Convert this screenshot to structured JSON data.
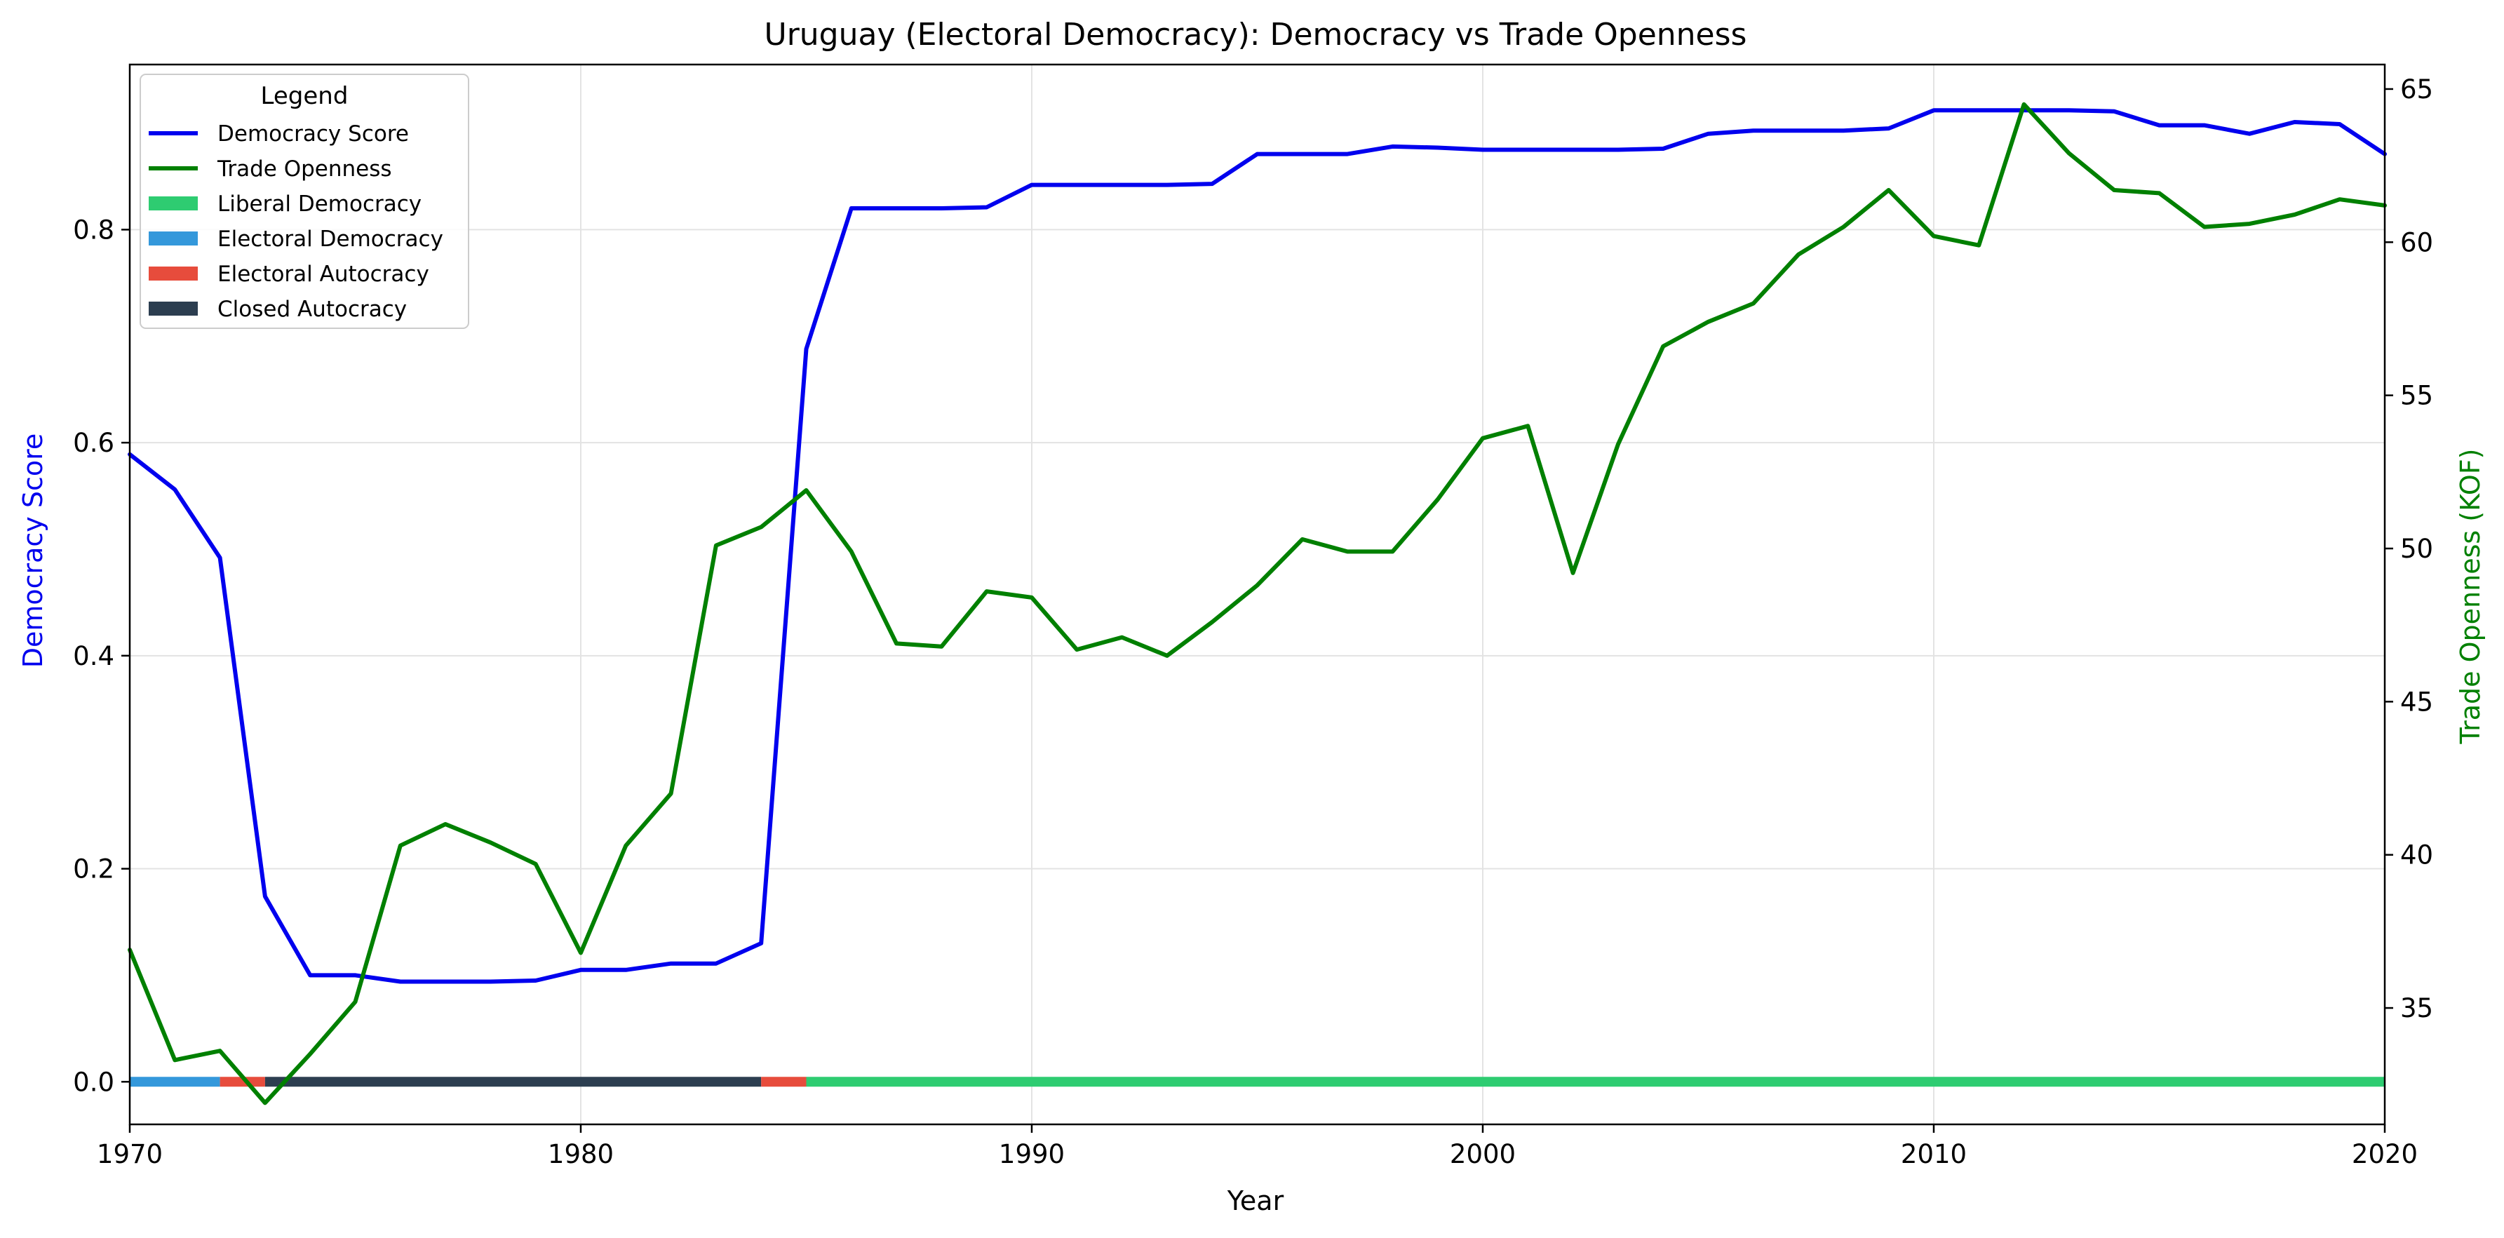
{
  "chart_data": {
    "type": "line",
    "title": "Uruguay (Electoral Democracy): Democracy vs Trade Openness",
    "xlabel": "Year",
    "ylabel_left": "Democracy Score",
    "ylabel_right": "Trade Openness (KOF)",
    "xlim": [
      1970,
      2020
    ],
    "ylim_left": [
      -0.04,
      0.955
    ],
    "ylim_right": [
      31.2,
      65.8
    ],
    "x_ticks": [
      1970,
      1980,
      1990,
      2000,
      2010,
      2020
    ],
    "y_left_ticks": [
      0.0,
      0.2,
      0.4,
      0.6,
      0.8
    ],
    "y_left_tick_labels": [
      "0.0",
      "0.2",
      "0.4",
      "0.6",
      "0.8"
    ],
    "y_right_ticks": [
      35,
      40,
      45,
      50,
      55,
      60,
      65
    ],
    "grid": true,
    "legend_title": "Legend",
    "legend_position": "upper-left",
    "colors": {
      "democracy": "#0000ee",
      "trade": "#008000",
      "liberal_democracy": "#2ecc71",
      "electoral_democracy": "#3498db",
      "electoral_autocracy": "#e74c3c",
      "closed_autocracy": "#2c3e50"
    },
    "series": [
      {
        "name": "Democracy Score",
        "axis": "left",
        "color": "#0000ee",
        "x": [
          1970,
          1971,
          1972,
          1973,
          1974,
          1975,
          1976,
          1977,
          1978,
          1979,
          1980,
          1981,
          1982,
          1983,
          1984,
          1985,
          1986,
          1987,
          1988,
          1989,
          1990,
          1991,
          1992,
          1993,
          1994,
          1995,
          1996,
          1997,
          1998,
          1999,
          2000,
          2001,
          2002,
          2003,
          2004,
          2005,
          2006,
          2007,
          2008,
          2009,
          2010,
          2011,
          2012,
          2013,
          2014,
          2015,
          2016,
          2017,
          2018,
          2019,
          2020
        ],
        "values": [
          0.589,
          0.556,
          0.492,
          0.174,
          0.1,
          0.1,
          0.094,
          0.094,
          0.094,
          0.095,
          0.105,
          0.105,
          0.111,
          0.111,
          0.13,
          0.688,
          0.82,
          0.82,
          0.82,
          0.821,
          0.842,
          0.842,
          0.842,
          0.842,
          0.843,
          0.871,
          0.871,
          0.871,
          0.878,
          0.877,
          0.875,
          0.875,
          0.875,
          0.875,
          0.876,
          0.89,
          0.893,
          0.893,
          0.893,
          0.895,
          0.912,
          0.912,
          0.912,
          0.912,
          0.911,
          0.898,
          0.898,
          0.89,
          0.901,
          0.899,
          0.871
        ]
      },
      {
        "name": "Trade Openness",
        "axis": "right",
        "color": "#008000",
        "x": [
          1970,
          1971,
          1972,
          1973,
          1974,
          1975,
          1976,
          1977,
          1978,
          1979,
          1980,
          1981,
          1982,
          1983,
          1984,
          1985,
          1986,
          1987,
          1988,
          1989,
          1990,
          1991,
          1992,
          1993,
          1994,
          1995,
          1996,
          1997,
          1998,
          1999,
          2000,
          2001,
          2002,
          2003,
          2004,
          2005,
          2006,
          2007,
          2008,
          2009,
          2010,
          2011,
          2012,
          2013,
          2014,
          2015,
          2016,
          2017,
          2018,
          2019,
          2020
        ],
        "values": [
          36.9,
          33.3,
          33.6,
          31.9,
          33.5,
          35.2,
          40.3,
          41.0,
          40.4,
          39.7,
          36.8,
          40.3,
          42.0,
          50.1,
          50.7,
          51.9,
          49.9,
          46.9,
          46.8,
          48.6,
          48.4,
          46.7,
          47.1,
          46.5,
          47.6,
          48.8,
          50.3,
          49.9,
          49.9,
          51.6,
          53.6,
          54.0,
          49.2,
          53.4,
          56.6,
          57.4,
          58.0,
          59.6,
          60.5,
          61.7,
          60.2,
          59.9,
          64.5,
          62.9,
          61.7,
          61.6,
          60.5,
          60.6,
          60.9,
          61.4,
          61.2
        ]
      }
    ],
    "regime_segments": [
      {
        "name": "Electoral Democracy",
        "start": 1970,
        "end": 1972,
        "color": "#3498db"
      },
      {
        "name": "Electoral Autocracy",
        "start": 1972,
        "end": 1973,
        "color": "#e74c3c"
      },
      {
        "name": "Closed Autocracy",
        "start": 1973,
        "end": 1984,
        "color": "#2c3e50"
      },
      {
        "name": "Electoral Autocracy",
        "start": 1984,
        "end": 1985,
        "color": "#e74c3c"
      },
      {
        "name": "Liberal Democracy",
        "start": 1985,
        "end": 2020,
        "color": "#2ecc71"
      }
    ],
    "legend": [
      {
        "label": "Democracy Score",
        "kind": "line",
        "color": "#0000ee"
      },
      {
        "label": "Trade Openness",
        "kind": "line",
        "color": "#008000"
      },
      {
        "label": "Liberal Democracy",
        "kind": "patch",
        "color": "#2ecc71"
      },
      {
        "label": "Electoral Democracy",
        "kind": "patch",
        "color": "#3498db"
      },
      {
        "label": "Electoral Autocracy",
        "kind": "patch",
        "color": "#e74c3c"
      },
      {
        "label": "Closed Autocracy",
        "kind": "patch",
        "color": "#2c3e50"
      }
    ]
  }
}
